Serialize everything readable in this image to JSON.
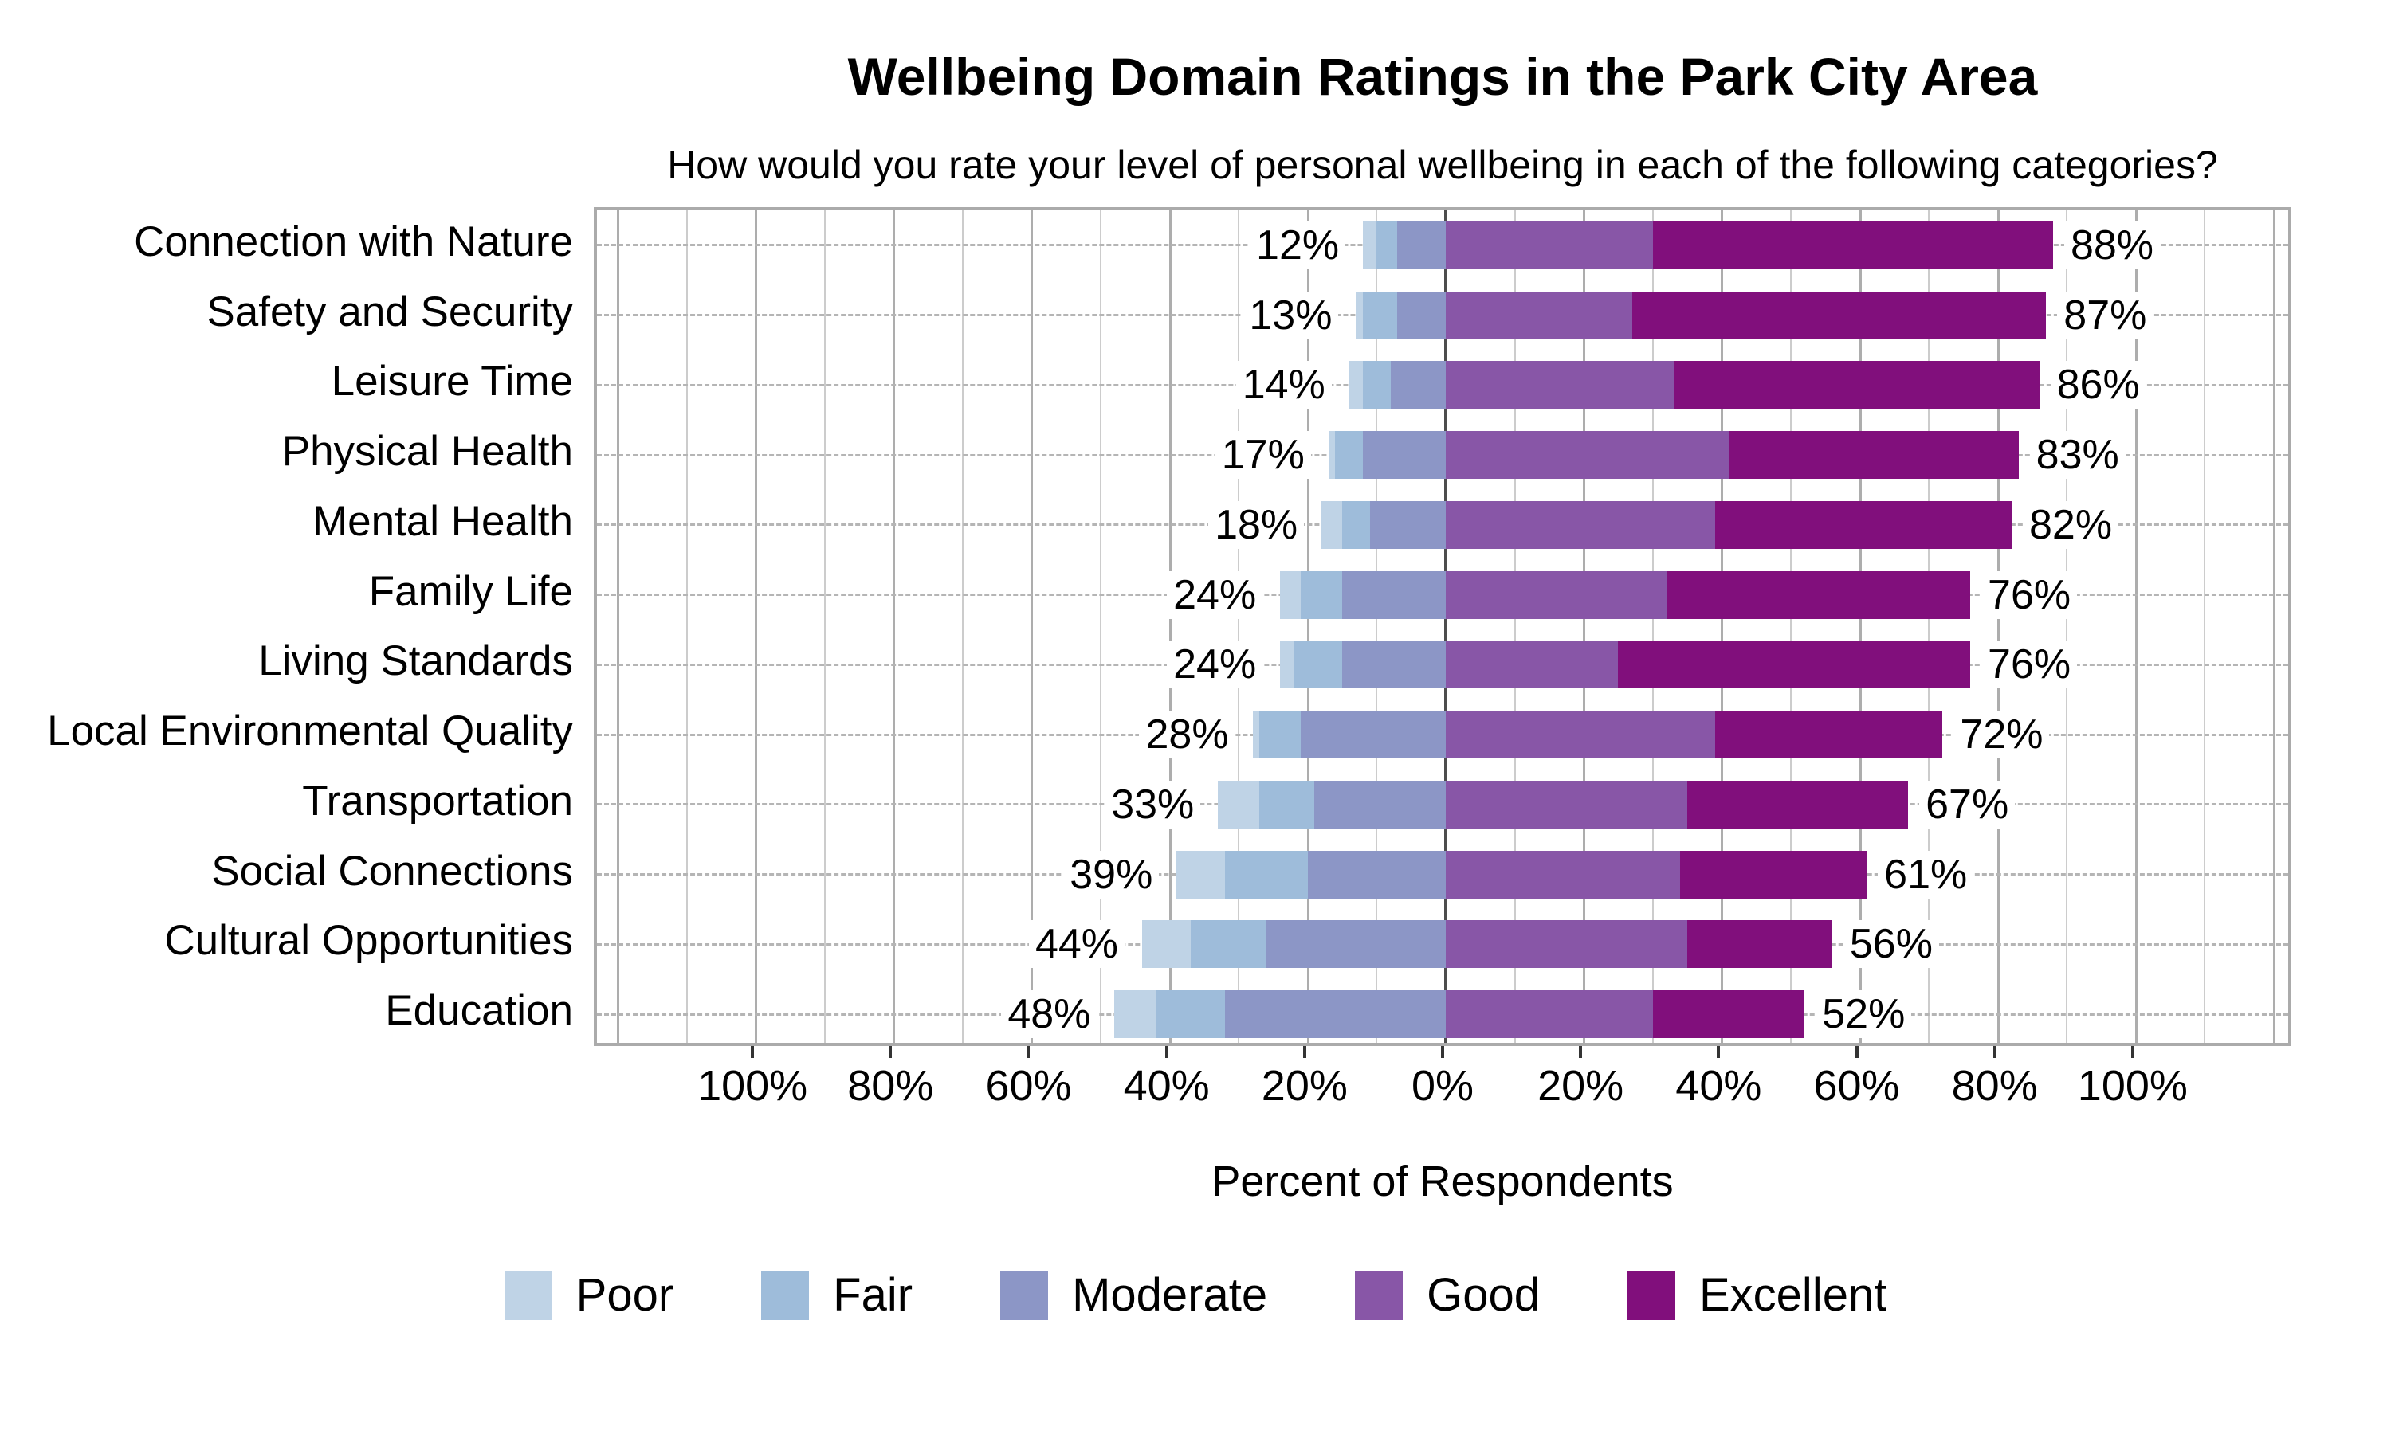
{
  "title": "Wellbeing Domain Ratings in the Park City Area",
  "subtitle": "How would you rate your level of personal wellbeing in each of the following categories?",
  "xlabel": "Percent of Respondents",
  "colors": {
    "poor": "#bfd3e6",
    "fair": "#9ebcda",
    "moderate": "#8c96c6",
    "good": "#8856a7",
    "excellent": "#810f7c",
    "gridline_minor": "#cccccc",
    "gridline_major": "#adadad",
    "zero_line": "#4d4d4d",
    "row_guide": "#b5b5b5",
    "plot_border": "#ababab"
  },
  "legend_labels": [
    "Poor",
    "Fair",
    "Moderate",
    "Good",
    "Excellent"
  ],
  "axis": {
    "xlim": 123,
    "gridline_step": 10,
    "tick_step": 20,
    "tick_labels": [
      "100%",
      "80%",
      "60%",
      "40%",
      "20%",
      "0%",
      "20%",
      "40%",
      "60%",
      "80%",
      "100%"
    ]
  },
  "chart_data": {
    "type": "bar",
    "subtype": "diverging-stacked-likert",
    "title": "Wellbeing Domain Ratings in the Park City Area",
    "subtitle": "How would you rate your level of personal wellbeing in each of the following categories?",
    "xlabel": "Percent of Respondents",
    "legend_position": "bottom",
    "xlim": [
      -123,
      123
    ],
    "categories": [
      "Connection with Nature",
      "Safety and Security",
      "Leisure Time",
      "Physical Health",
      "Mental Health",
      "Family Life",
      "Living Standards",
      "Local Environmental Quality",
      "Transportation",
      "Social Connections",
      "Cultural Opportunities",
      "Education"
    ],
    "series": [
      {
        "name": "Poor",
        "values": [
          2,
          1,
          2,
          1,
          3,
          3,
          2,
          1,
          6,
          7,
          7,
          6
        ]
      },
      {
        "name": "Fair",
        "values": [
          3,
          5,
          4,
          4,
          4,
          6,
          7,
          6,
          8,
          12,
          11,
          10
        ]
      },
      {
        "name": "Moderate",
        "values": [
          7,
          7,
          8,
          12,
          11,
          15,
          15,
          21,
          19,
          20,
          26,
          32
        ]
      },
      {
        "name": "Good",
        "values": [
          30,
          27,
          33,
          41,
          39,
          32,
          25,
          39,
          35,
          34,
          35,
          30
        ]
      },
      {
        "name": "Excellent",
        "values": [
          58,
          60,
          53,
          42,
          43,
          44,
          51,
          33,
          32,
          27,
          21,
          22
        ]
      }
    ],
    "left_totals": [
      12,
      13,
      14,
      17,
      18,
      24,
      24,
      28,
      33,
      39,
      44,
      48
    ],
    "right_totals": [
      88,
      87,
      86,
      83,
      82,
      76,
      76,
      72,
      67,
      61,
      56,
      52
    ]
  }
}
